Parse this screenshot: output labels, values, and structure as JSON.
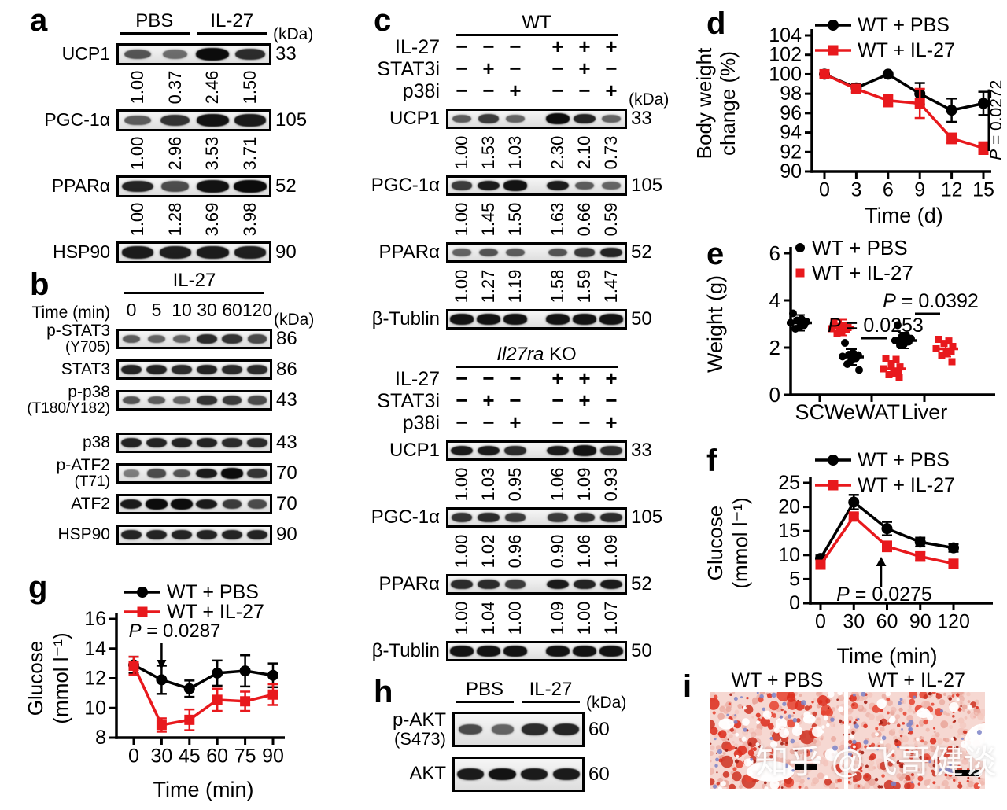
{
  "figure": {
    "letters": {
      "a": "a",
      "b": "b",
      "c": "c",
      "d": "d",
      "e": "e",
      "f": "f",
      "g": "g",
      "h": "h",
      "i": "i"
    }
  },
  "colors": {
    "black": "#000000",
    "red": "#e8191d"
  },
  "blots": {
    "a": {
      "kda_unit": "(kDa)",
      "group_headers": [
        {
          "label": "PBS"
        },
        {
          "label": "IL-27"
        }
      ],
      "rows": [
        {
          "protein": "UCP1",
          "kda": "33",
          "bands": [
            0.55,
            0.4,
            1,
            0.8
          ],
          "values": [
            "1.00",
            "0.37",
            "2.46",
            "1.50"
          ]
        },
        {
          "protein": "PGC-1α",
          "kda": "105",
          "bands": [
            0.5,
            0.75,
            0.95,
            0.9
          ],
          "values": [
            "1.00",
            "2.96",
            "3.53",
            "3.71"
          ]
        },
        {
          "protein": "PPARα",
          "kda": "52",
          "bands": [
            0.85,
            0.6,
            0.95,
            1
          ],
          "values": [
            "1.00",
            "1.28",
            "3.69",
            "3.98"
          ]
        },
        {
          "protein": "HSP90",
          "kda": "90",
          "bands": [
            0.9,
            0.88,
            0.9,
            0.88
          ]
        }
      ]
    },
    "b": {
      "kda_unit": "(kDa)",
      "header": "IL-27",
      "time_label": "Time (min)",
      "time_points": [
        "0",
        "5",
        "10",
        "30",
        "60",
        "120"
      ],
      "rows": [
        {
          "protein": "p-STAT3",
          "sub": "(Y705)",
          "kda": "86",
          "bands": [
            0.5,
            0.45,
            0.45,
            0.8,
            0.75,
            0.6
          ]
        },
        {
          "protein": "STAT3",
          "kda": "86",
          "bands": [
            0.85,
            0.85,
            0.8,
            0.85,
            0.8,
            0.8
          ]
        },
        {
          "protein": "p-p38",
          "sub": "(T180/Y182)",
          "kda": "43",
          "bands": [
            0.55,
            0.5,
            0.45,
            0.75,
            0.7,
            0.6
          ]
        },
        {
          "protein": "p38",
          "kda": "43",
          "bands": [
            0.85,
            0.85,
            0.85,
            0.85,
            0.8,
            0.8
          ]
        },
        {
          "protein": "p-ATF2",
          "sub": "(T71)",
          "kda": "70",
          "bands": [
            0.3,
            0.6,
            0.55,
            0.9,
            1,
            0.75
          ]
        },
        {
          "protein": "ATF2",
          "kda": "70",
          "bands": [
            0.9,
            1,
            1,
            0.9,
            0.7,
            0.6
          ]
        },
        {
          "protein": "HSP90",
          "kda": "90",
          "bands": [
            0.85,
            0.85,
            0.85,
            0.85,
            0.85,
            0.85
          ]
        }
      ]
    },
    "c_wt": {
      "kda_unit": "(kDa)",
      "header": "WT",
      "treatments": [
        {
          "name": "IL-27",
          "signs": [
            "−",
            "−",
            "−",
            "+",
            "+",
            "+"
          ]
        },
        {
          "name": "STAT3i",
          "signs": [
            "−",
            "+",
            "−",
            "−",
            "+",
            "−"
          ]
        },
        {
          "name": "p38i",
          "signs": [
            "−",
            "−",
            "+",
            "−",
            "−",
            "+"
          ]
        }
      ],
      "rows": [
        {
          "protein": "UCP1",
          "kda": "33",
          "bands": [
            0.5,
            0.7,
            0.45,
            1,
            0.85,
            0.45
          ],
          "values": [
            "1.00",
            "1.53",
            "1.03",
            "2.30",
            "2.10",
            "0.73"
          ]
        },
        {
          "protein": "PGC-1α",
          "kda": "105",
          "bands": [
            0.7,
            0.9,
            0.95,
            0.9,
            0.5,
            0.45
          ],
          "values": [
            "1.00",
            "1.45",
            "1.50",
            "1.63",
            "0.66",
            "0.59"
          ]
        },
        {
          "protein": "PPARα",
          "kda": "52",
          "bands": [
            0.45,
            0.55,
            0.5,
            0.55,
            0.7,
            0.85
          ],
          "values": [
            "1.00",
            "1.27",
            "1.19",
            "1.58",
            "1.59",
            "1.47"
          ]
        },
        {
          "protein": "β-Tublin",
          "kda": "50",
          "bands": [
            0.95,
            0.95,
            0.95,
            0.95,
            0.95,
            0.95
          ]
        }
      ]
    },
    "c_ko": {
      "header_italic": "Il27ra",
      "header_plain": " KO",
      "treatments": [
        {
          "name": "IL-27",
          "signs": [
            "−",
            "−",
            "−",
            "+",
            "+",
            "+"
          ]
        },
        {
          "name": "STAT3i",
          "signs": [
            "−",
            "+",
            "−",
            "−",
            "+",
            "−"
          ]
        },
        {
          "name": "p38i",
          "signs": [
            "−",
            "−",
            "+",
            "−",
            "−",
            "+"
          ]
        }
      ],
      "rows": [
        {
          "protein": "UCP1",
          "kda": "33",
          "bands": [
            0.9,
            0.9,
            0.8,
            0.9,
            0.95,
            0.8
          ],
          "values": [
            "1.00",
            "1.03",
            "0.95",
            "1.06",
            "1.09",
            "0.93"
          ]
        },
        {
          "protein": "PGC-1α",
          "kda": "105",
          "bands": [
            0.75,
            0.8,
            0.7,
            0.7,
            0.75,
            0.8
          ],
          "values": [
            "1.00",
            "1.02",
            "0.96",
            "0.90",
            "1.06",
            "1.09"
          ]
        },
        {
          "protein": "PPARα",
          "kda": "52",
          "bands": [
            0.8,
            0.8,
            0.7,
            0.9,
            0.85,
            0.9
          ],
          "values": [
            "1.00",
            "1.04",
            "1.00",
            "1.09",
            "1.00",
            "1.07"
          ]
        },
        {
          "protein": "β-Tublin",
          "kda": "50",
          "bands": [
            0.95,
            0.95,
            0.95,
            0.95,
            0.95,
            0.95
          ]
        }
      ]
    },
    "h": {
      "kda_unit": "(kDa)",
      "group_headers": [
        {
          "label": "PBS"
        },
        {
          "label": "IL-27"
        }
      ],
      "rows": [
        {
          "protein": "p-AKT",
          "sub": "(S473)",
          "kda": "60",
          "bands": [
            0.6,
            0.45,
            0.8,
            0.85
          ]
        },
        {
          "protein": "AKT",
          "kda": "60",
          "bands": [
            0.9,
            0.95,
            0.9,
            0.9
          ]
        }
      ]
    }
  },
  "chart_data": [
    {
      "id": "d",
      "type": "line",
      "xlabel": "Time (d)",
      "ylabel_lines": [
        "Body weight",
        "change (%)"
      ],
      "x": [
        0,
        3,
        6,
        9,
        12,
        15
      ],
      "ylim": [
        90,
        104
      ],
      "yticks": [
        90,
        92,
        94,
        96,
        98,
        100,
        102,
        104
      ],
      "legend_position": "top",
      "grid": false,
      "series": [
        {
          "name": "WT + PBS",
          "color": "#000000",
          "marker": "circle",
          "values": [
            100,
            98.6,
            100,
            98,
            96.3,
            97
          ],
          "errors": [
            0.2,
            0.4,
            0.2,
            1.1,
            1.2,
            1.2
          ]
        },
        {
          "name": "WT + IL-27",
          "color": "#e8191d",
          "marker": "square",
          "values": [
            100,
            98.5,
            97.3,
            97,
            93.4,
            92.4
          ],
          "errors": [
            0.2,
            0.4,
            0.6,
            1.5,
            0.5,
            0.6
          ]
        }
      ],
      "annotation": {
        "text": "P = 0.0272"
      }
    },
    {
      "id": "e",
      "type": "scatter",
      "ylabel_lines": [
        "Weight (g)"
      ],
      "categories": [
        "SCW",
        "eWAT",
        "Liver"
      ],
      "ylim": [
        0,
        6
      ],
      "yticks": [
        0,
        2,
        4,
        6
      ],
      "legend_position": "top-left",
      "grid": false,
      "series": [
        {
          "name": "WT + PBS",
          "color": "#000000",
          "marker": "circle",
          "points": {
            "SCW": [
              3.45,
              3.2,
              3.15,
              3.1,
              3.05,
              2.95,
              2.85,
              2.8
            ],
            "eWAT": [
              2.2,
              1.75,
              1.7,
              1.68,
              1.62,
              1.55,
              1.45,
              1.3,
              1.05
            ],
            "Liver": [
              2.95,
              2.5,
              2.45,
              2.38,
              2.3,
              2.25,
              2.15,
              2.1
            ]
          },
          "means": {
            "SCW": 3.05,
            "eWAT": 1.6,
            "Liver": 2.3
          }
        },
        {
          "name": "WT + IL-27",
          "color": "#e8191d",
          "marker": "square",
          "points": {
            "SCW": [
              3.1,
              2.95,
              2.9,
              2.85,
              2.8,
              2.75,
              2.65,
              2.6
            ],
            "eWAT": [
              1.55,
              1.5,
              1.25,
              1.18,
              1.1,
              1,
              0.9,
              0.85,
              0.75
            ],
            "Liver": [
              2.35,
              2.28,
              2.18,
              2.05,
              1.95,
              1.85,
              1.75,
              1.65,
              1.4
            ]
          },
          "means": {
            "SCW": 2.85,
            "eWAT": 1.1,
            "Liver": 1.95
          }
        }
      ],
      "annotations": [
        {
          "text": "P = 0.0253",
          "category": "eWAT"
        },
        {
          "text": "P = 0.0392",
          "category": "Liver"
        }
      ]
    },
    {
      "id": "f",
      "type": "line",
      "xlabel": "Time (min)",
      "ylabel_lines": [
        "Glucose",
        "(mmol l⁻¹)"
      ],
      "x": [
        0,
        30,
        60,
        90,
        120
      ],
      "ylim": [
        0,
        25
      ],
      "yticks": [
        0,
        5,
        10,
        15,
        20,
        25
      ],
      "legend_position": "top",
      "grid": false,
      "series": [
        {
          "name": "WT + PBS",
          "color": "#000000",
          "marker": "circle",
          "values": [
            9.3,
            21,
            15.5,
            12.7,
            11.5
          ],
          "errors": [
            0.6,
            1.5,
            1.4,
            0.9,
            0.8
          ]
        },
        {
          "name": "WT + IL-27",
          "color": "#e8191d",
          "marker": "square",
          "values": [
            8,
            18,
            11.8,
            9.7,
            8.2
          ],
          "errors": [
            0.4,
            0.6,
            1,
            0.9,
            0.5
          ]
        }
      ],
      "annotation": {
        "text": "P = 0.0275",
        "at_x": 60
      }
    },
    {
      "id": "g",
      "type": "line",
      "xlabel": "Time (min)",
      "ylabel_lines": [
        "Glucose",
        "(mmol l⁻¹)"
      ],
      "x": [
        0,
        30,
        45,
        60,
        75,
        90
      ],
      "ylim": [
        8,
        16
      ],
      "yticks": [
        8,
        10,
        12,
        14,
        16
      ],
      "legend_position": "top",
      "grid": false,
      "series": [
        {
          "name": "WT + PBS",
          "color": "#000000",
          "marker": "circle",
          "values": [
            12.9,
            11.9,
            11.3,
            12.35,
            12.5,
            12.2
          ],
          "errors": [
            0.55,
            0.95,
            0.55,
            0.85,
            1.05,
            0.8
          ]
        },
        {
          "name": "WT + IL-27",
          "color": "#e8191d",
          "marker": "square",
          "values": [
            12.85,
            8.85,
            9.2,
            10.55,
            10.45,
            10.9
          ],
          "errors": [
            0.6,
            0.45,
            0.7,
            0.75,
            0.65,
            0.7
          ]
        }
      ],
      "annotation": {
        "text": "P = 0.0287",
        "at_x": 30
      }
    }
  ],
  "histology": {
    "labels": [
      "WT + PBS",
      "WT + IL-27"
    ],
    "watermark": "知乎 @飞哥健谈"
  }
}
